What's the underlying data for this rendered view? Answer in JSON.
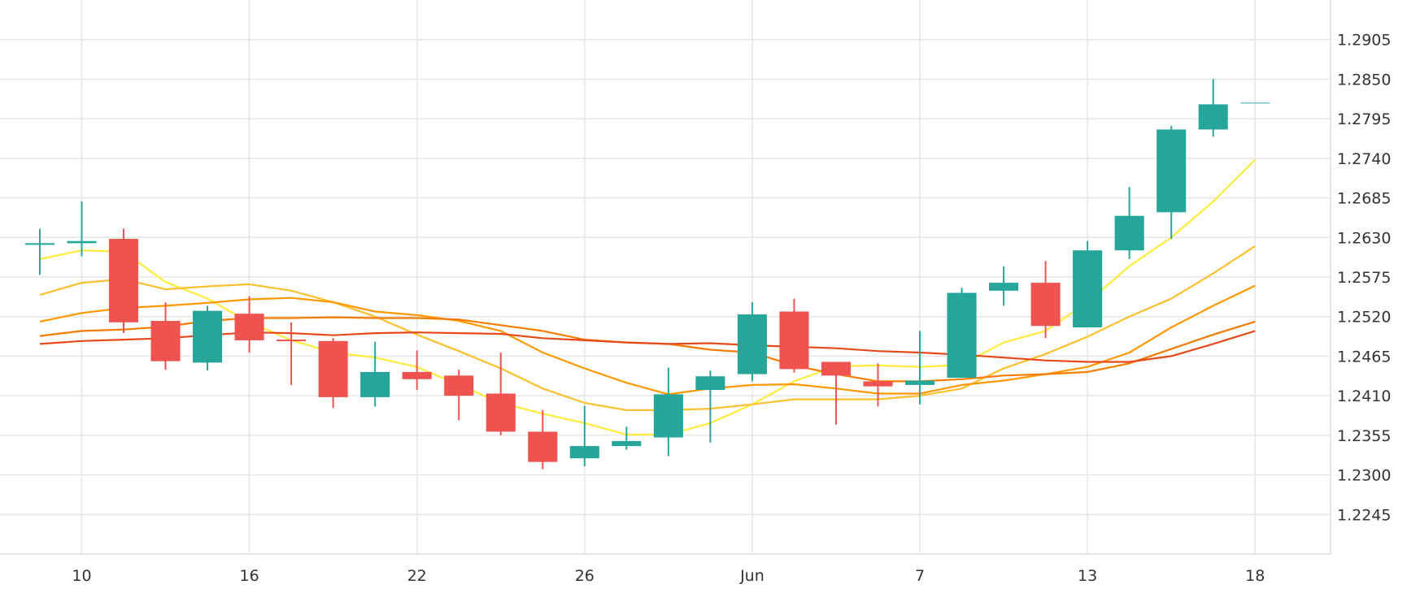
{
  "chart_data": {
    "type": "candlestick",
    "colors": {
      "up": "#26a69a",
      "down": "#ef5350",
      "grid": "#e6e6e6",
      "axis": "#dddddd",
      "text": "#333333"
    },
    "y_axis": {
      "position": "right",
      "range": [
        1.219,
        1.296
      ],
      "ticks": [
        "1.2245",
        "1.2300",
        "1.2355",
        "1.2410",
        "1.2465",
        "1.2520",
        "1.2575",
        "1.2630",
        "1.2685",
        "1.2740",
        "1.2795",
        "1.2850",
        "1.2905"
      ]
    },
    "x_axis": {
      "range": [
        -0.95,
        30.8
      ],
      "ticks": [
        {
          "i": 1,
          "label": "10"
        },
        {
          "i": 5,
          "label": "16"
        },
        {
          "i": 9,
          "label": "22"
        },
        {
          "i": 13,
          "label": "26"
        },
        {
          "i": 17,
          "label": "Jun"
        },
        {
          "i": 21,
          "label": "7"
        },
        {
          "i": 25,
          "label": "13"
        },
        {
          "i": 29,
          "label": "18"
        }
      ]
    },
    "candles": [
      {
        "o": 1.2622,
        "h": 1.2642,
        "l": 1.2578,
        "c": 1.2622
      },
      {
        "o": 1.2622,
        "h": 1.268,
        "l": 1.2604,
        "c": 1.2625
      },
      {
        "o": 1.2628,
        "h": 1.2642,
        "l": 1.2497,
        "c": 1.2512
      },
      {
        "o": 1.2514,
        "h": 1.254,
        "l": 1.2446,
        "c": 1.2458
      },
      {
        "o": 1.2456,
        "h": 1.2535,
        "l": 1.2445,
        "c": 1.2528
      },
      {
        "o": 1.2524,
        "h": 1.2548,
        "l": 1.247,
        "c": 1.2487
      },
      {
        "o": 1.2488,
        "h": 1.2512,
        "l": 1.2425,
        "c": 1.2486
      },
      {
        "o": 1.2486,
        "h": 1.249,
        "l": 1.2393,
        "c": 1.2408
      },
      {
        "o": 1.2408,
        "h": 1.2485,
        "l": 1.2395,
        "c": 1.2443
      },
      {
        "o": 1.2443,
        "h": 1.2473,
        "l": 1.2418,
        "c": 1.2433
      },
      {
        "o": 1.2438,
        "h": 1.2446,
        "l": 1.2376,
        "c": 1.241
      },
      {
        "o": 1.2413,
        "h": 1.247,
        "l": 1.2355,
        "c": 1.236
      },
      {
        "o": 1.236,
        "h": 1.239,
        "l": 1.2308,
        "c": 1.2318
      },
      {
        "o": 1.2323,
        "h": 1.2396,
        "l": 1.2312,
        "c": 1.234
      },
      {
        "o": 1.234,
        "h": 1.2367,
        "l": 1.2335,
        "c": 1.2347
      },
      {
        "o": 1.2352,
        "h": 1.2449,
        "l": 1.2326,
        "c": 1.2412
      },
      {
        "o": 1.2418,
        "h": 1.2445,
        "l": 1.2345,
        "c": 1.2437
      },
      {
        "o": 1.244,
        "h": 1.254,
        "l": 1.243,
        "c": 1.2523
      },
      {
        "o": 1.2527,
        "h": 1.2545,
        "l": 1.2442,
        "c": 1.2447
      },
      {
        "o": 1.2457,
        "h": 1.2457,
        "l": 1.237,
        "c": 1.2438
      },
      {
        "o": 1.243,
        "h": 1.2455,
        "l": 1.2395,
        "c": 1.2423
      },
      {
        "o": 1.2425,
        "h": 1.25,
        "l": 1.2398,
        "c": 1.2431
      },
      {
        "o": 1.2435,
        "h": 1.256,
        "l": 1.2435,
        "c": 1.2553
      },
      {
        "o": 1.2556,
        "h": 1.259,
        "l": 1.2535,
        "c": 1.2567
      },
      {
        "o": 1.2567,
        "h": 1.2597,
        "l": 1.249,
        "c": 1.2507
      },
      {
        "o": 1.2505,
        "h": 1.2625,
        "l": 1.2505,
        "c": 1.2612
      },
      {
        "o": 1.2612,
        "h": 1.27,
        "l": 1.26,
        "c": 1.266
      },
      {
        "o": 1.2665,
        "h": 1.2785,
        "l": 1.2628,
        "c": 1.278
      },
      {
        "o": 1.278,
        "h": 1.285,
        "l": 1.277,
        "c": 1.2815
      },
      {
        "o": 1.2818,
        "h": 1.2818,
        "l": 1.2818,
        "c": 1.2818
      }
    ],
    "moving_averages": [
      {
        "color": "#ffeb3b",
        "values": [
          1.26,
          1.2612,
          1.261,
          1.2568,
          1.2545,
          1.2512,
          1.2487,
          1.247,
          1.2463,
          1.245,
          1.2425,
          1.24,
          1.2385,
          1.2372,
          1.2356,
          1.2356,
          1.2372,
          1.2398,
          1.243,
          1.2451,
          1.2452,
          1.245,
          1.2453,
          1.2484,
          1.25,
          1.254,
          1.259,
          1.263,
          1.268,
          1.2738
        ]
      },
      {
        "color": "#fbc02d",
        "values": [
          1.255,
          1.2567,
          1.2572,
          1.2558,
          1.2562,
          1.2565,
          1.2556,
          1.254,
          1.252,
          1.2495,
          1.2472,
          1.2448,
          1.242,
          1.24,
          1.239,
          1.239,
          1.2392,
          1.2398,
          1.2405,
          1.2405,
          1.2405,
          1.241,
          1.242,
          1.2448,
          1.2468,
          1.2492,
          1.252,
          1.2545,
          1.258,
          1.2618
        ]
      },
      {
        "color": "#ff9800",
        "values": [
          1.2513,
          1.2525,
          1.2532,
          1.2535,
          1.2539,
          1.2544,
          1.2546,
          1.254,
          1.2527,
          1.2522,
          1.2514,
          1.25,
          1.247,
          1.2448,
          1.2428,
          1.2412,
          1.242,
          1.2425,
          1.2426,
          1.242,
          1.2413,
          1.2413,
          1.2425,
          1.2431,
          1.244,
          1.245,
          1.247,
          1.2505,
          1.2535,
          1.2563
        ]
      },
      {
        "color": "#f57c00",
        "values": [
          1.2493,
          1.25,
          1.2502,
          1.2506,
          1.2514,
          1.2518,
          1.2518,
          1.2519,
          1.2518,
          1.2518,
          1.2516,
          1.2508,
          1.25,
          1.2488,
          1.2484,
          1.2482,
          1.2474,
          1.247,
          1.2452,
          1.244,
          1.243,
          1.243,
          1.2433,
          1.2438,
          1.244,
          1.2443,
          1.2455,
          1.2475,
          1.2495,
          1.2513
        ]
      },
      {
        "color": "#e64a19",
        "values": [
          1.2482,
          1.2486,
          1.2488,
          1.249,
          1.2494,
          1.2498,
          1.2497,
          1.2494,
          1.2497,
          1.2498,
          1.2497,
          1.2496,
          1.249,
          1.2487,
          1.2484,
          1.2482,
          1.2483,
          1.248,
          1.2478,
          1.2476,
          1.2472,
          1.247,
          1.2467,
          1.2463,
          1.2459,
          1.2457,
          1.2457,
          1.2465,
          1.2482,
          1.25
        ]
      }
    ]
  }
}
